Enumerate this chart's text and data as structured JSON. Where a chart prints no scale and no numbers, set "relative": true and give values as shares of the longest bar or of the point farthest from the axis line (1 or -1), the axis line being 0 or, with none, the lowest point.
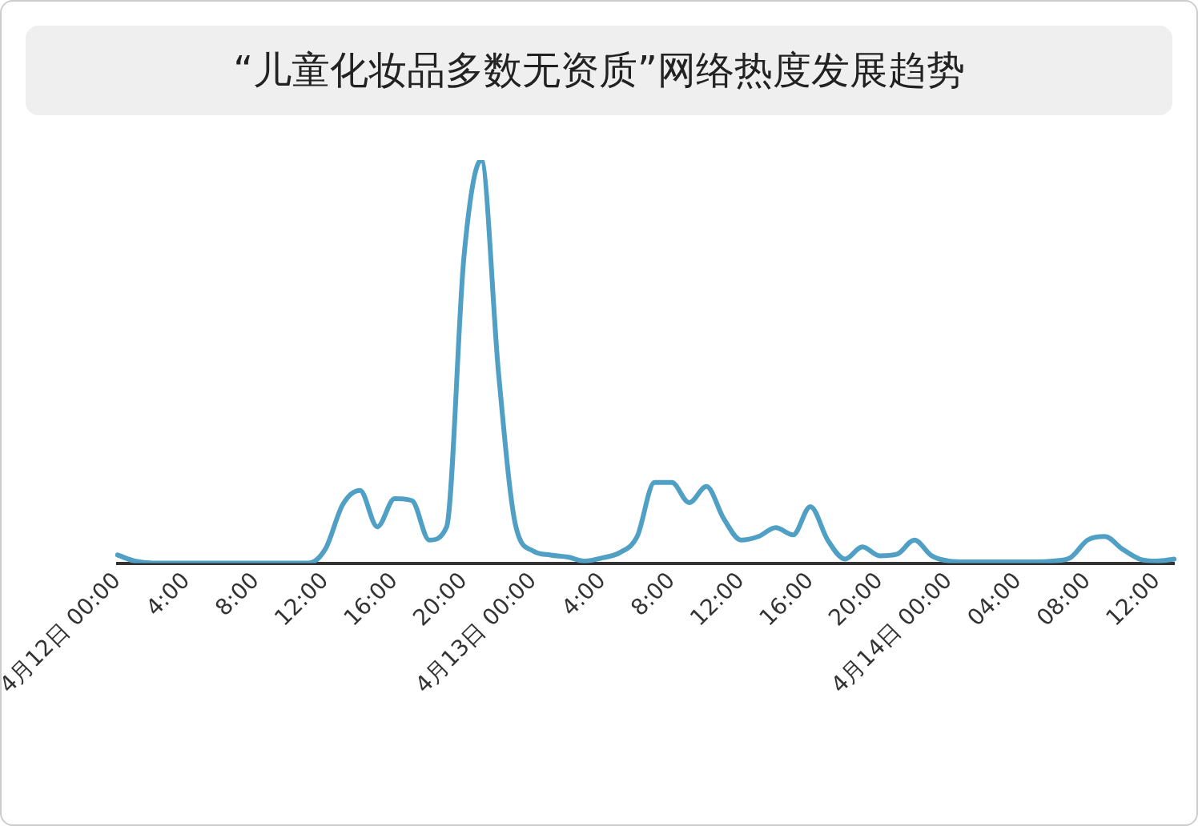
{
  "chart_data": {
    "type": "line",
    "title": "“儿童化妆品多数无资质”网络热度发展趋势",
    "relative": true,
    "grid": false,
    "legend": false,
    "marker": "none",
    "line_style": "solid",
    "categories": [
      "4月12日 00:00",
      null,
      null,
      null,
      "4:00",
      null,
      null,
      null,
      "8:00",
      null,
      null,
      null,
      "12:00",
      null,
      null,
      null,
      "16:00",
      null,
      null,
      null,
      "20:00",
      null,
      null,
      null,
      "4月13日 00:00",
      null,
      null,
      null,
      "4:00",
      null,
      null,
      null,
      "8:00",
      null,
      null,
      null,
      "12:00",
      null,
      null,
      null,
      "16:00",
      null,
      null,
      null,
      "20:00",
      null,
      null,
      null,
      "4月14日 00:00",
      null,
      null,
      null,
      "04:00",
      null,
      null,
      null,
      "08:00",
      null,
      null,
      null,
      "12:00",
      null
    ],
    "series": [
      {
        "color": "#509fc4",
        "values": [
          0.02,
          0.005,
          0,
          0,
          0,
          0,
          0,
          0,
          0,
          0,
          0,
          0,
          0.035,
          0.145,
          0.18,
          0.09,
          0.16,
          0.155,
          0.057,
          0.09,
          0.76,
          1,
          0.47,
          0.09,
          0.03,
          0.02,
          0.015,
          0.005,
          0.013,
          0.026,
          0.066,
          0.2,
          0.2,
          0.15,
          0.19,
          0.11,
          0.057,
          0.066,
          0.088,
          0.07,
          0.14,
          0.057,
          0.01,
          0.04,
          0.018,
          0.022,
          0.057,
          0.018,
          0.005,
          0.003,
          0.003,
          0.003,
          0.003,
          0.003,
          0.005,
          0.013,
          0.057,
          0.066,
          0.035,
          0.01,
          0.005,
          0.01
        ]
      }
    ]
  }
}
